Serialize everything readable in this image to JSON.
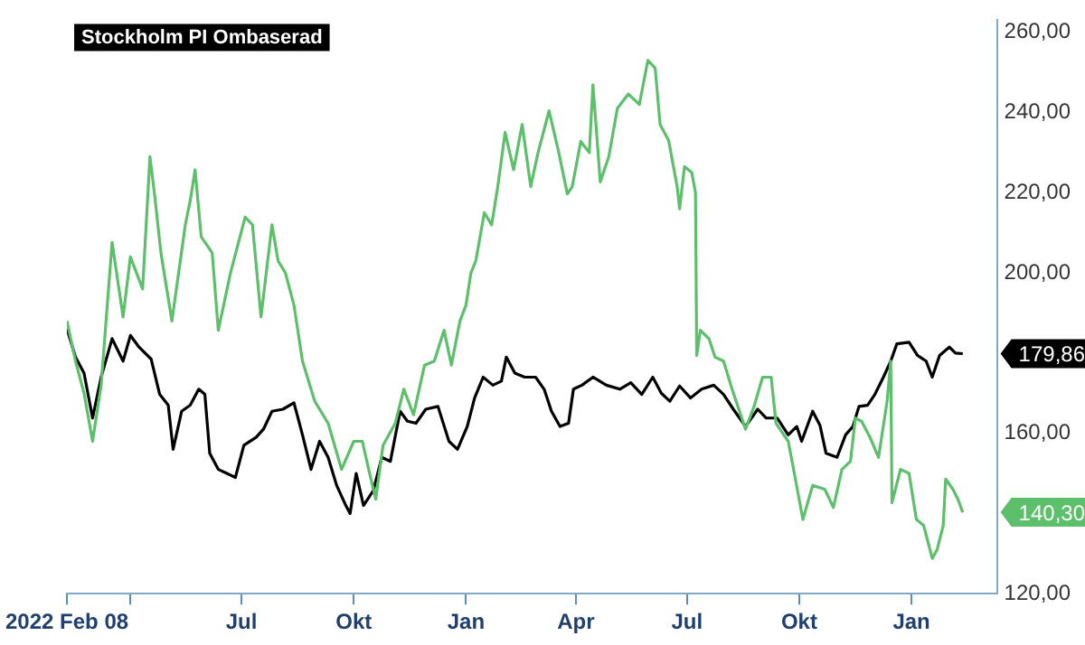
{
  "chart_data": {
    "type": "line",
    "legend": "top left",
    "grid": false,
    "marker": "none",
    "line_style": "solid",
    "xlim": [
      "2022-02-08",
      "2024-03-11"
    ],
    "xticks": [
      {
        "value": "2022-02-08",
        "label": "2022 Feb 08"
      },
      {
        "value": "2022-04-01",
        "label": null
      },
      {
        "value": "2022-07-01",
        "label": "Jul"
      },
      {
        "value": "2022-10-01",
        "label": "Okt"
      },
      {
        "value": "2023-01-01",
        "label": "Jan"
      },
      {
        "value": "2023-04-01",
        "label": "Apr"
      },
      {
        "value": "2023-07-01",
        "label": "Jul"
      },
      {
        "value": "2023-10-01",
        "label": "Okt"
      },
      {
        "value": "2024-01-01",
        "label": "Jan"
      }
    ],
    "ylim": [
      120,
      263
    ],
    "yticks": [
      {
        "value": 120,
        "label": "120,00"
      },
      {
        "value": 160,
        "label": "160,00"
      },
      {
        "value": 200,
        "label": "200,00"
      },
      {
        "value": 220,
        "label": "220,00"
      },
      {
        "value": 240,
        "label": "240,00"
      },
      {
        "value": 260,
        "label": "260,00"
      }
    ],
    "annotations": [
      "140,30",
      "179,86"
    ],
    "series": [
      {
        "color": "#5cbf6a",
        "x": [
          "2022-02-08",
          "2022-02-15",
          "2022-02-22",
          "2022-03-01",
          "2022-03-08",
          "2022-03-17",
          "2022-03-26",
          "2022-04-01",
          "2022-04-11",
          "2022-04-17",
          "2022-04-21",
          "2022-04-26",
          "2022-05-05",
          "2022-05-16",
          "2022-05-20",
          "2022-05-24",
          "2022-05-29",
          "2022-06-07",
          "2022-06-12",
          "2022-06-22",
          "2022-07-04",
          "2022-07-10",
          "2022-07-17",
          "2022-07-26",
          "2022-07-31",
          "2022-08-06",
          "2022-08-13",
          "2022-08-20",
          "2022-08-30",
          "2022-09-10",
          "2022-09-21",
          "2022-10-01",
          "2022-10-08",
          "2022-10-14",
          "2022-10-19",
          "2022-10-25",
          "2022-11-04",
          "2022-11-11",
          "2022-11-19",
          "2022-11-28",
          "2022-12-06",
          "2022-12-14",
          "2022-12-20",
          "2022-12-27",
          "2023-01-01",
          "2023-01-05",
          "2023-01-09",
          "2023-01-16",
          "2023-01-22",
          "2023-01-27",
          "2023-02-02",
          "2023-02-09",
          "2023-02-16",
          "2023-02-23",
          "2023-03-01",
          "2023-03-10",
          "2023-03-18",
          "2023-03-25",
          "2023-03-29",
          "2023-04-05",
          "2023-04-12",
          "2023-04-15",
          "2023-04-21",
          "2023-04-28",
          "2023-05-05",
          "2023-05-14",
          "2023-05-23",
          "2023-05-30",
          "2023-06-05",
          "2023-06-09",
          "2023-06-16",
          "2023-06-23",
          "2023-06-25",
          "2023-06-29",
          "2023-07-05",
          "2023-07-08",
          "2023-07-09",
          "2023-07-12",
          "2023-07-19",
          "2023-07-24",
          "2023-07-31",
          "2023-08-07",
          "2023-08-14",
          "2023-08-18",
          "2023-08-25",
          "2023-09-01",
          "2023-09-08",
          "2023-09-12",
          "2023-09-22",
          "2023-09-27",
          "2023-10-04",
          "2023-10-12",
          "2023-10-22",
          "2023-10-29",
          "2023-11-05",
          "2023-11-12",
          "2023-11-16",
          "2023-11-21",
          "2023-11-28",
          "2023-12-05",
          "2023-12-12",
          "2023-12-15",
          "2023-12-16",
          "2023-12-23",
          "2023-12-30",
          "2024-01-05",
          "2024-01-11",
          "2024-01-18",
          "2024-01-22",
          "2024-01-27",
          "2024-01-29",
          "2024-02-04",
          "2024-02-08",
          "2024-02-12"
        ],
        "values": [
          188,
          178,
          170,
          158,
          172,
          207.6,
          189,
          204,
          196,
          229,
          219,
          205,
          188,
          212,
          218,
          225.7,
          209,
          205,
          185.7,
          200,
          213.9,
          212,
          189,
          212,
          203,
          200,
          192,
          178,
          168,
          162.5,
          151,
          158,
          158,
          150,
          143.6,
          157,
          162.5,
          171,
          164.6,
          177,
          178,
          185.7,
          177,
          188,
          192,
          200,
          203,
          215,
          212,
          221.5,
          235,
          225.7,
          237,
          221.5,
          230,
          240.4,
          230,
          219.7,
          221.5,
          232.8,
          230,
          246.9,
          222.7,
          229,
          241,
          244.6,
          242,
          253,
          251,
          237,
          233,
          221.5,
          216,
          226.5,
          225,
          220,
          179.4,
          185.7,
          183.6,
          179,
          178,
          171,
          164.6,
          161,
          166.7,
          174,
          174,
          162.5,
          158,
          150,
          138.5,
          147,
          146,
          141.5,
          151,
          153,
          163.8,
          163,
          159,
          154,
          168,
          178,
          142.7,
          151,
          150,
          138.5,
          137,
          128.8,
          131,
          137,
          148.6,
          146,
          143.6,
          140.3
        ]
      },
      {
        "name": "Stockholm PI Ombaserad",
        "color": "#000000",
        "x": [
          "2022-02-08",
          "2022-02-15",
          "2022-02-22",
          "2022-03-01",
          "2022-03-08",
          "2022-03-17",
          "2022-03-26",
          "2022-04-01",
          "2022-04-08",
          "2022-04-18",
          "2022-04-25",
          "2022-05-02",
          "2022-05-06",
          "2022-05-13",
          "2022-05-20",
          "2022-05-27",
          "2022-06-01",
          "2022-06-05",
          "2022-06-12",
          "2022-06-19",
          "2022-06-26",
          "2022-07-03",
          "2022-07-13",
          "2022-07-19",
          "2022-07-26",
          "2022-08-04",
          "2022-08-13",
          "2022-08-20",
          "2022-08-27",
          "2022-09-03",
          "2022-09-10",
          "2022-09-17",
          "2022-09-24",
          "2022-09-28",
          "2022-10-03",
          "2022-10-09",
          "2022-10-17",
          "2022-10-24",
          "2022-10-31",
          "2022-11-08",
          "2022-11-14",
          "2022-11-21",
          "2022-11-29",
          "2022-12-09",
          "2022-12-18",
          "2022-12-25",
          "2023-01-02",
          "2023-01-08",
          "2023-01-15",
          "2023-01-23",
          "2023-01-30",
          "2023-02-03",
          "2023-02-10",
          "2023-02-18",
          "2023-02-27",
          "2023-03-06",
          "2023-03-12",
          "2023-03-19",
          "2023-03-26",
          "2023-03-30",
          "2023-04-06",
          "2023-04-15",
          "2023-04-26",
          "2023-05-07",
          "2023-05-16",
          "2023-05-25",
          "2023-06-03",
          "2023-06-10",
          "2023-06-17",
          "2023-06-25",
          "2023-07-04",
          "2023-07-13",
          "2023-07-23",
          "2023-07-31",
          "2023-08-08",
          "2023-08-18",
          "2023-08-28",
          "2023-09-04",
          "2023-09-13",
          "2023-09-22",
          "2023-09-29",
          "2023-10-03",
          "2023-10-12",
          "2023-10-18",
          "2023-10-23",
          "2023-11-01",
          "2023-11-08",
          "2023-11-14",
          "2023-11-19",
          "2023-11-26",
          "2023-12-02",
          "2023-12-09",
          "2023-12-15",
          "2023-12-20",
          "2023-12-30",
          "2024-01-06",
          "2024-01-13",
          "2024-01-18",
          "2024-01-24",
          "2024-02-01",
          "2024-02-06",
          "2024-02-12"
        ],
        "values": [
          186,
          179,
          175,
          163.8,
          174,
          183.6,
          178,
          184.4,
          181.5,
          178.5,
          169.7,
          167,
          156,
          165.5,
          167,
          171,
          169.7,
          155,
          151,
          150,
          149,
          157,
          159,
          161,
          165.5,
          166,
          167.6,
          159.6,
          151,
          158,
          154,
          147,
          142.3,
          140,
          150,
          142,
          145.7,
          154,
          153,
          165.5,
          163,
          162.5,
          166,
          166.7,
          158,
          156,
          161.7,
          168.8,
          174,
          172,
          173,
          179,
          175,
          174,
          174,
          171,
          165.5,
          161.7,
          162.5,
          171,
          172,
          174,
          172,
          171,
          172.6,
          169.7,
          174,
          170,
          168,
          171.8,
          168.8,
          171,
          172,
          169.7,
          166,
          161.7,
          166,
          163.8,
          163.8,
          159.6,
          161.7,
          158,
          165.5,
          162,
          155,
          154,
          159.6,
          161.7,
          166.7,
          167,
          169.7,
          174,
          178,
          182.3,
          182.7,
          179.4,
          178,
          174,
          179.4,
          181.5,
          180,
          179.86
        ]
      }
    ]
  }
}
